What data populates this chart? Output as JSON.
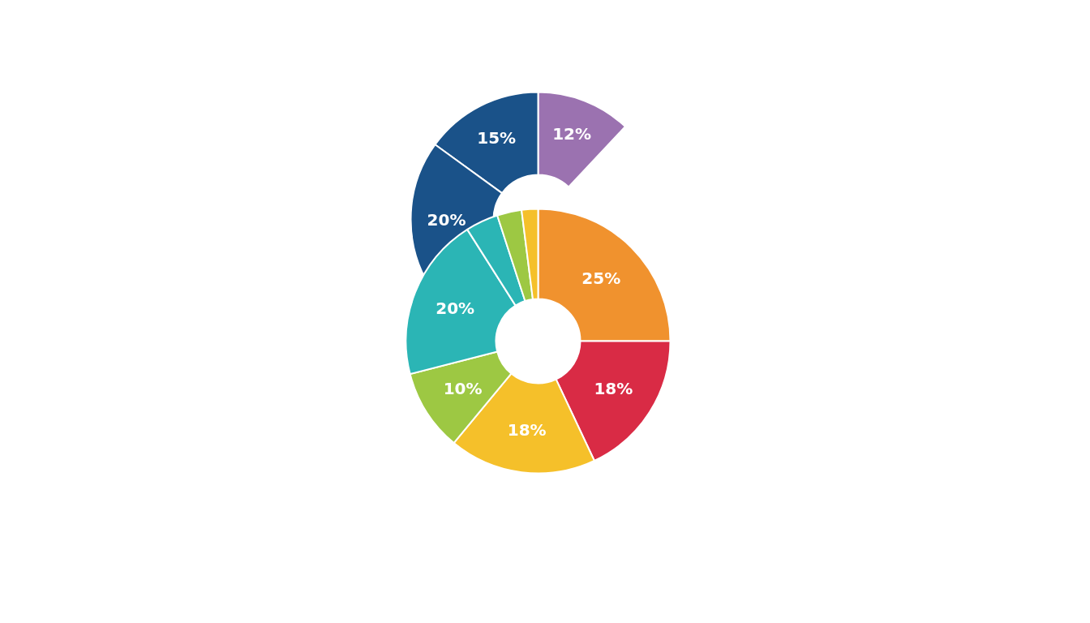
{
  "chart_data": [
    {
      "type": "donut",
      "categories": [
        null,
        null,
        null
      ],
      "values": [
        12,
        15,
        20
      ],
      "colors": [
        "#9b72b0",
        "#1a5289",
        "#1a5289"
      ],
      "value_labels": [
        "12%",
        "15%",
        "20%"
      ]
    },
    {
      "type": "donut",
      "categories": [
        null,
        null,
        null,
        null,
        null,
        null,
        null,
        null
      ],
      "values": [
        25,
        18,
        18,
        10,
        20,
        4,
        3,
        2
      ],
      "colors": [
        "#f0922e",
        "#d92b45",
        "#f5c02a",
        "#9dc843",
        "#2bb5b5",
        "#2bb5b5",
        "#9dc843",
        "#f5c02a"
      ],
      "value_labels": [
        "25%",
        "18%",
        "18%",
        "10%",
        "20%",
        null,
        null,
        null
      ]
    }
  ]
}
